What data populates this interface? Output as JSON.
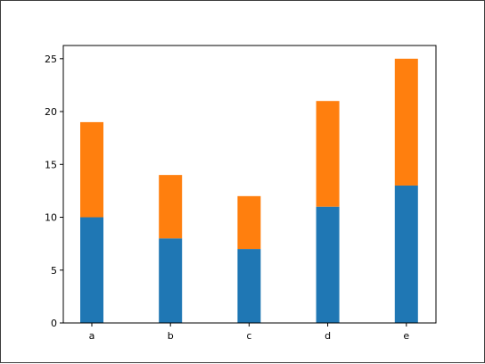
{
  "chart_data": {
    "type": "bar",
    "stacked": true,
    "categories": [
      "a",
      "b",
      "c",
      "d",
      "e"
    ],
    "series": [
      {
        "values": [
          10,
          8,
          7,
          11,
          13
        ],
        "color": "#1f77b4"
      },
      {
        "values": [
          9,
          6,
          5,
          10,
          12
        ],
        "color": "#ff7f0e"
      }
    ],
    "title": "",
    "xlabel": "",
    "ylabel": "",
    "ylim": [
      0,
      26.25
    ],
    "yticks": [
      0,
      5,
      10,
      15,
      20,
      25
    ],
    "grid": false,
    "legend": false
  }
}
